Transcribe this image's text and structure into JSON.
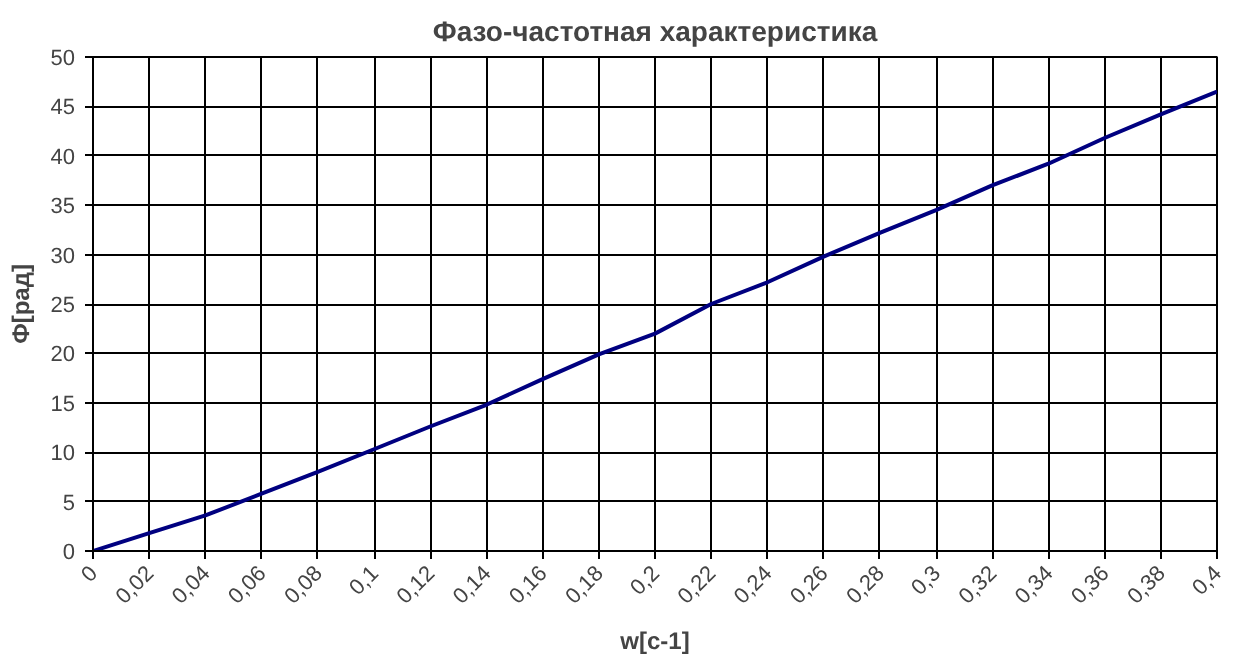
{
  "chart_data": {
    "type": "line",
    "title": "Фазо-частотная характеристика",
    "xlabel": "w[c-1]",
    "ylabel": "Ф[рад]",
    "x": [
      0,
      0.02,
      0.04,
      0.06,
      0.08,
      0.1,
      0.12,
      0.14,
      0.16,
      0.18,
      0.2,
      0.22,
      0.24,
      0.26,
      0.28,
      0.3,
      0.32,
      0.34,
      0.36,
      0.38,
      0.4
    ],
    "series": [
      {
        "color": "#000080",
        "values": [
          0,
          1.8,
          3.6,
          5.8,
          8,
          10.3,
          12.6,
          14.8,
          17.4,
          19.9,
          22,
          25,
          27.2,
          29.8,
          32.2,
          34.5,
          37,
          39.2,
          41.8,
          44.2,
          46.5
        ]
      }
    ],
    "xlim": [
      0,
      0.4
    ],
    "xticks": [
      0,
      {
        "value": 0.02,
        "label": "0,02"
      },
      {
        "value": 0.04,
        "label": "0,04"
      },
      {
        "value": 0.06,
        "label": "0,06"
      },
      {
        "value": 0.08,
        "label": "0,08"
      },
      {
        "value": 0.1,
        "label": "0,1"
      },
      {
        "value": 0.12,
        "label": "0,12"
      },
      {
        "value": 0.14,
        "label": "0,14"
      },
      {
        "value": 0.16,
        "label": "0,16"
      },
      {
        "value": 0.18,
        "label": "0,18"
      },
      {
        "value": 0.2,
        "label": "0,2"
      },
      {
        "value": 0.22,
        "label": "0,22"
      },
      {
        "value": 0.24,
        "label": "0,24"
      },
      {
        "value": 0.26,
        "label": "0,26"
      },
      {
        "value": 0.28,
        "label": "0,28"
      },
      {
        "value": 0.3,
        "label": "0,3"
      },
      {
        "value": 0.32,
        "label": "0,32"
      },
      {
        "value": 0.34,
        "label": "0,34"
      },
      {
        "value": 0.36,
        "label": "0,36"
      },
      {
        "value": 0.38,
        "label": "0,38"
      },
      {
        "value": 0.4,
        "label": "0,4"
      }
    ],
    "ylim": [
      0,
      50
    ],
    "yticks": [
      0,
      5,
      10,
      15,
      20,
      25,
      30,
      35,
      40,
      45,
      50
    ],
    "grid": true,
    "marker": "none",
    "line_style": "solid"
  }
}
